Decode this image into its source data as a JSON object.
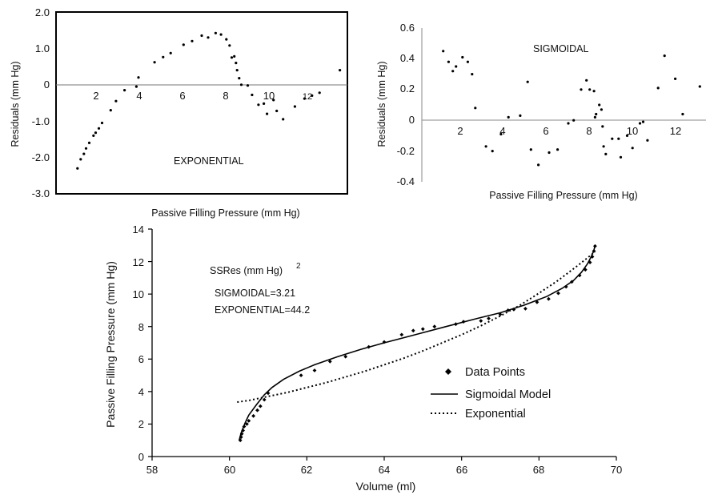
{
  "chart_data": [
    {
      "type": "scatter",
      "annotation": "EXPONENTIAL",
      "xlabel": "Passive Filling Pressure  (mm Hg)",
      "ylabel": "Residuals  (mm Hg)",
      "ylim": [
        -3.0,
        2.0
      ],
      "xlim": [
        0,
        13.6
      ],
      "yticks": [
        "2.0",
        "1.0",
        "0",
        "-1.0",
        "-2.0",
        "-3.0"
      ],
      "xticks": [
        "2",
        "4",
        "6",
        "8",
        "10",
        "12"
      ],
      "points": [
        [
          1.0,
          -2.3
        ],
        [
          1.15,
          -2.05
        ],
        [
          1.3,
          -1.9
        ],
        [
          1.4,
          -1.75
        ],
        [
          1.55,
          -1.6
        ],
        [
          1.75,
          -1.4
        ],
        [
          1.85,
          -1.32
        ],
        [
          2.0,
          -1.2
        ],
        [
          2.15,
          -1.05
        ],
        [
          2.55,
          -0.7
        ],
        [
          2.8,
          -0.45
        ],
        [
          3.2,
          -0.15
        ],
        [
          3.75,
          -0.05
        ],
        [
          3.85,
          0.2
        ],
        [
          4.6,
          0.62
        ],
        [
          5.0,
          0.76
        ],
        [
          5.35,
          0.87
        ],
        [
          5.95,
          1.1
        ],
        [
          6.35,
          1.2
        ],
        [
          6.8,
          1.35
        ],
        [
          7.1,
          1.3
        ],
        [
          7.45,
          1.42
        ],
        [
          7.7,
          1.38
        ],
        [
          7.95,
          1.25
        ],
        [
          8.1,
          1.08
        ],
        [
          8.2,
          0.75
        ],
        [
          8.32,
          0.78
        ],
        [
          8.4,
          0.6
        ],
        [
          8.45,
          0.4
        ],
        [
          8.55,
          0.18
        ],
        [
          8.65,
          0.0
        ],
        [
          8.95,
          -0.02
        ],
        [
          9.15,
          -0.28
        ],
        [
          9.45,
          -0.55
        ],
        [
          9.7,
          -0.52
        ],
        [
          9.85,
          -0.8
        ],
        [
          10.15,
          -0.42
        ],
        [
          10.3,
          -0.72
        ],
        [
          10.6,
          -0.95
        ],
        [
          11.15,
          -0.6
        ],
        [
          11.6,
          -0.38
        ],
        [
          11.95,
          -0.3
        ],
        [
          12.3,
          -0.22
        ],
        [
          13.25,
          0.4
        ]
      ]
    },
    {
      "type": "scatter",
      "annotation": "SIGMOIDAL",
      "xlabel": "Passive Filling Pressure  (mm Hg)",
      "ylabel": "Residuals  (mm Hg)",
      "ylim": [
        -0.4,
        0.6
      ],
      "xlim": [
        0,
        13.4
      ],
      "yticks": [
        "0.6",
        "0.4",
        "0.2",
        "0",
        "-0.2",
        "-0.4"
      ],
      "xticks": [
        "2",
        "4",
        "6",
        "8",
        "10",
        "12"
      ],
      "points": [
        [
          1.0,
          0.45
        ],
        [
          1.25,
          0.38
        ],
        [
          1.45,
          0.32
        ],
        [
          1.6,
          0.35
        ],
        [
          1.9,
          0.41
        ],
        [
          2.15,
          0.38
        ],
        [
          2.35,
          0.3
        ],
        [
          2.5,
          0.08
        ],
        [
          3.0,
          -0.17
        ],
        [
          3.3,
          -0.2
        ],
        [
          3.7,
          -0.09
        ],
        [
          4.05,
          0.02
        ],
        [
          4.6,
          0.03
        ],
        [
          4.95,
          0.25
        ],
        [
          5.1,
          -0.19
        ],
        [
          5.45,
          -0.29
        ],
        [
          5.95,
          -0.21
        ],
        [
          6.35,
          -0.19
        ],
        [
          6.85,
          -0.02
        ],
        [
          7.1,
          0.0
        ],
        [
          7.45,
          0.2
        ],
        [
          7.7,
          0.26
        ],
        [
          7.85,
          0.2
        ],
        [
          8.05,
          0.19
        ],
        [
          8.1,
          0.02
        ],
        [
          8.15,
          0.04
        ],
        [
          8.3,
          0.1
        ],
        [
          8.4,
          0.07
        ],
        [
          8.45,
          -0.04
        ],
        [
          8.5,
          -0.17
        ],
        [
          8.6,
          -0.22
        ],
        [
          8.9,
          -0.12
        ],
        [
          9.2,
          -0.12
        ],
        [
          9.3,
          -0.24
        ],
        [
          9.6,
          -0.1
        ],
        [
          9.85,
          -0.18
        ],
        [
          10.2,
          -0.02
        ],
        [
          10.35,
          -0.01
        ],
        [
          10.55,
          -0.13
        ],
        [
          11.05,
          0.21
        ],
        [
          11.35,
          0.42
        ],
        [
          11.85,
          0.27
        ],
        [
          12.2,
          0.04
        ],
        [
          13.0,
          0.22
        ]
      ]
    },
    {
      "type": "line",
      "xlabel": "Volume  (ml)",
      "ylabel": "Passive Filling Pressure  (mm Hg)",
      "xlim": [
        58,
        70
      ],
      "ylim": [
        0,
        14
      ],
      "xticks": [
        "58",
        "60",
        "62",
        "64",
        "66",
        "68",
        "70"
      ],
      "yticks": [
        "0",
        "2",
        "4",
        "6",
        "8",
        "10",
        "12",
        "14"
      ],
      "annotation_title": "SSRes  (mm Hg)",
      "annotation_sup": "2",
      "annotation_lines": [
        "SIGMOIDAL=3.21",
        "EXPONENTIAL=44.2"
      ],
      "legend": {
        "position": "center-right",
        "entries": [
          "Data Points",
          "Sigmoidal Model",
          "Exponential"
        ]
      },
      "data_points": [
        [
          60.28,
          1.0
        ],
        [
          60.3,
          1.2
        ],
        [
          60.32,
          1.4
        ],
        [
          60.35,
          1.6
        ],
        [
          60.38,
          1.85
        ],
        [
          60.45,
          2.0
        ],
        [
          60.5,
          2.2
        ],
        [
          60.62,
          2.5
        ],
        [
          60.72,
          2.85
        ],
        [
          60.8,
          3.1
        ],
        [
          60.9,
          3.5
        ],
        [
          61.0,
          3.9
        ],
        [
          61.85,
          5.0
        ],
        [
          62.2,
          5.3
        ],
        [
          62.6,
          5.85
        ],
        [
          63.0,
          6.15
        ],
        [
          63.6,
          6.75
        ],
        [
          64.0,
          7.05
        ],
        [
          64.45,
          7.5
        ],
        [
          64.75,
          7.75
        ],
        [
          65.0,
          7.85
        ],
        [
          65.3,
          8.0
        ],
        [
          65.85,
          8.15
        ],
        [
          66.05,
          8.3
        ],
        [
          66.5,
          8.35
        ],
        [
          66.7,
          8.5
        ],
        [
          67.0,
          8.75
        ],
        [
          67.2,
          9.0
        ],
        [
          67.35,
          9.05
        ],
        [
          67.65,
          9.1
        ],
        [
          67.95,
          9.5
        ],
        [
          68.25,
          9.7
        ],
        [
          68.5,
          10.05
        ],
        [
          68.7,
          10.45
        ],
        [
          68.85,
          10.75
        ],
        [
          69.05,
          11.15
        ],
        [
          69.2,
          11.5
        ],
        [
          69.32,
          11.95
        ],
        [
          69.38,
          12.3
        ],
        [
          69.42,
          12.65
        ],
        [
          69.45,
          12.95
        ]
      ],
      "series": [
        {
          "name": "Sigmoidal Model",
          "style": "solid",
          "x": [
            60.25,
            60.3,
            60.4,
            60.5,
            60.7,
            60.9,
            61.1,
            61.4,
            61.8,
            62.2,
            62.8,
            63.4,
            64.0,
            64.8,
            65.6,
            66.4,
            67.0,
            67.6,
            68.2,
            68.6,
            68.9,
            69.1,
            69.25,
            69.35,
            69.42,
            69.45
          ],
          "y": [
            1.0,
            1.45,
            2.05,
            2.55,
            3.2,
            3.8,
            4.25,
            4.75,
            5.25,
            5.65,
            6.15,
            6.6,
            7.0,
            7.5,
            8.0,
            8.5,
            8.85,
            9.3,
            9.85,
            10.35,
            10.85,
            11.35,
            11.85,
            12.3,
            12.7,
            13.0
          ]
        },
        {
          "name": "Exponential",
          "style": "dotted",
          "x": [
            60.2,
            60.5,
            61.0,
            61.5,
            62.0,
            62.5,
            63.0,
            63.5,
            64.0,
            64.5,
            65.0,
            65.5,
            66.0,
            66.5,
            67.0,
            67.5,
            68.0,
            68.5,
            69.0,
            69.45
          ],
          "y": [
            3.35,
            3.45,
            3.7,
            3.95,
            4.25,
            4.55,
            4.9,
            5.25,
            5.65,
            6.05,
            6.5,
            7.0,
            7.5,
            8.05,
            8.65,
            9.3,
            10.05,
            10.85,
            11.75,
            12.6
          ]
        }
      ]
    }
  ]
}
